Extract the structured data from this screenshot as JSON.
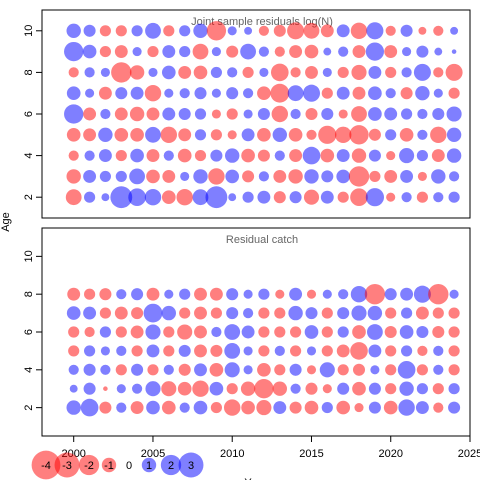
{
  "chart_data": [
    {
      "type": "scatter",
      "title": "Joint sample residuals log(N)",
      "ylabel": "Age",
      "xlim": [
        1998,
        2025
      ],
      "ylim": [
        1,
        11
      ],
      "yticks": [
        "2",
        "4",
        "6",
        "8",
        "10"
      ],
      "grid": false,
      "encoding": "bubble area ~ |residual|; red = negative, blue = positive",
      "x": [
        2000,
        2001,
        2002,
        2003,
        2004,
        2005,
        2006,
        2007,
        2008,
        2009,
        2010,
        2011,
        2012,
        2013,
        2014,
        2015,
        2016,
        2017,
        2018,
        2019,
        2020,
        2021,
        2022,
        2023,
        2024
      ],
      "ages": [
        2,
        3,
        4,
        5,
        6,
        7,
        8,
        9,
        10
      ],
      "residuals": {
        "2": [
          -1.2,
          0.6,
          0.3,
          2.3,
          1.5,
          1.3,
          -0.9,
          -1.3,
          1.2,
          2.3,
          0.3,
          0.6,
          0.8,
          -0.7,
          0.7,
          -1.1,
          0.8,
          -0.6,
          -1.5,
          1.6,
          -0.4,
          0.5,
          -0.6,
          0.5,
          0.6
        ],
        "3": [
          -1.0,
          0.8,
          0.6,
          0.6,
          1.2,
          -0.9,
          -0.8,
          0.4,
          1.0,
          -1.3,
          0.9,
          -0.7,
          0.5,
          -0.8,
          -1.0,
          1.0,
          0.7,
          0.9,
          -2.0,
          -0.6,
          -0.8,
          0.8,
          -0.4,
          1.0,
          0.5
        ],
        "4": [
          -0.5,
          0.5,
          0.8,
          -0.6,
          0.9,
          -0.8,
          0.5,
          -0.9,
          -0.6,
          0.7,
          1.0,
          -0.9,
          -0.7,
          0.5,
          -0.8,
          1.5,
          -0.9,
          0.8,
          -1.0,
          0.7,
          -0.4,
          1.1,
          0.6,
          -0.8,
          1.0
        ],
        "5": [
          -0.9,
          -0.8,
          1.0,
          -0.9,
          -0.9,
          1.2,
          -1.3,
          -0.8,
          0.6,
          -0.6,
          -0.4,
          0.8,
          -0.9,
          1.0,
          -0.9,
          -0.5,
          -1.6,
          -1.3,
          -1.8,
          -0.7,
          0.6,
          -0.9,
          0.5,
          -1.3,
          1.0
        ],
        "6": [
          1.8,
          -0.8,
          0.5,
          -0.8,
          -1.0,
          -0.8,
          0.8,
          0.7,
          0.6,
          -0.4,
          -0.6,
          0.4,
          0.7,
          -1.3,
          0.5,
          -0.7,
          0.7,
          -0.4,
          -1.2,
          0.9,
          0.8,
          0.6,
          0.5,
          0.7,
          1.1
        ],
        "7": [
          0.9,
          0.4,
          -0.8,
          0.7,
          0.8,
          -1.3,
          0.4,
          0.5,
          0.7,
          0.4,
          0.7,
          0.5,
          -0.9,
          -1.7,
          1.2,
          1.4,
          -0.6,
          0.8,
          -0.8,
          0.9,
          0.5,
          -0.7,
          1.0,
          0.4,
          -0.6
        ],
        "8": [
          -0.5,
          0.5,
          0.4,
          -2.0,
          -1.0,
          0.4,
          0.9,
          -0.8,
          -0.9,
          0.6,
          0.5,
          -0.6,
          0.4,
          -1.5,
          -0.5,
          -0.8,
          0.4,
          -0.6,
          -1.1,
          0.8,
          -0.6,
          0.5,
          1.4,
          -0.5,
          -1.4
        ],
        "9": [
          1.8,
          0.9,
          -0.6,
          -0.8,
          0.4,
          -0.6,
          0.8,
          0.6,
          -1.2,
          0.4,
          -0.7,
          1.2,
          0.5,
          -0.5,
          -0.8,
          -0.9,
          0.3,
          0.5,
          -0.8,
          1.6,
          -0.8,
          0.4,
          0.7,
          0.3,
          0.1
        ],
        "10": [
          1.0,
          0.7,
          -0.6,
          -0.6,
          0.6,
          1.2,
          -0.6,
          0.6,
          1.0,
          -1.8,
          0.4,
          0.3,
          -0.5,
          -0.7,
          -1.4,
          -1.2,
          -0.8,
          0.8,
          -1.3,
          1.4,
          -0.5,
          0.7,
          -0.3,
          -0.5,
          0.3
        ]
      }
    },
    {
      "type": "scatter",
      "title": "Residual catch",
      "xlabel": "Y",
      "ylabel": "Age",
      "xlim": [
        1998,
        2025
      ],
      "ylim": [
        0.5,
        11.5
      ],
      "xticks": [
        "2000",
        "2005",
        "2010",
        "2015",
        "2020",
        "2025"
      ],
      "yticks": [
        "2",
        "4",
        "6",
        "8",
        "10"
      ],
      "grid": false,
      "encoding": "bubble area ~ |residual|; red = negative, blue = positive",
      "x": [
        2000,
        2001,
        2002,
        2003,
        2004,
        2005,
        2006,
        2007,
        2008,
        2009,
        2010,
        2011,
        2012,
        2013,
        2014,
        2015,
        2016,
        2017,
        2018,
        2019,
        2020,
        2021,
        2022,
        2023,
        2024
      ],
      "ages": [
        2,
        3,
        4,
        5,
        6,
        7,
        8
      ],
      "residuals": {
        "2": [
          1.0,
          1.5,
          -0.7,
          0.5,
          -0.8,
          0.9,
          -0.9,
          0.5,
          0.9,
          -0.6,
          -1.3,
          -0.9,
          -1.1,
          0.8,
          -0.7,
          -0.9,
          0.6,
          -0.9,
          -0.4,
          0.7,
          -0.9,
          1.3,
          0.8,
          -0.5,
          0.7
        ],
        "3": [
          0.3,
          0.7,
          -0.1,
          0.4,
          0.5,
          1.1,
          -1.1,
          -0.9,
          -1.3,
          0.9,
          -0.6,
          -1.0,
          -1.8,
          -1.0,
          0.5,
          -0.7,
          -0.4,
          0.7,
          -0.9,
          0.7,
          -0.6,
          1.0,
          0.6,
          -0.6,
          0.6
        ],
        "4": [
          0.5,
          0.7,
          0.5,
          -0.6,
          0.7,
          -0.6,
          0.5,
          -0.7,
          0.8,
          -0.9,
          1.1,
          0.4,
          -0.9,
          -0.6,
          0.7,
          -0.4,
          1.1,
          -0.6,
          -0.7,
          0.4,
          -0.6,
          1.5,
          -0.6,
          0.5,
          -0.6
        ],
        "5": [
          -0.6,
          0.6,
          0.4,
          0.5,
          -0.6,
          0.8,
          -0.6,
          0.7,
          -0.8,
          -0.7,
          1.2,
          0.4,
          -0.6,
          0.5,
          -0.6,
          0.4,
          -0.6,
          -0.8,
          -1.5,
          0.8,
          -0.6,
          0.6,
          -0.5,
          0.5,
          -0.6
        ],
        "6": [
          -0.6,
          -0.5,
          0.6,
          -0.6,
          -0.8,
          1.1,
          -0.6,
          -1.1,
          -0.8,
          0.5,
          1.2,
          0.8,
          -0.6,
          -0.6,
          -0.6,
          0.9,
          -0.6,
          0.6,
          -0.9,
          1.2,
          -0.7,
          0.9,
          0.7,
          -0.7,
          -0.6
        ],
        "7": [
          0.9,
          0.8,
          -0.6,
          -0.8,
          -0.7,
          1.7,
          1.0,
          -0.6,
          -0.8,
          -0.6,
          0.7,
          0.5,
          -0.6,
          -0.6,
          1.0,
          0.7,
          -0.6,
          0.7,
          1.1,
          1.0,
          -0.6,
          0.6,
          -0.8,
          -0.6,
          -0.6
        ],
        "8": [
          -0.8,
          -0.6,
          -0.7,
          0.5,
          0.7,
          -0.8,
          0.4,
          0.6,
          -0.8,
          -0.8,
          0.7,
          0.4,
          0.6,
          -0.4,
          0.8,
          -0.4,
          0.4,
          0.5,
          1.3,
          -2.0,
          0.7,
          0.8,
          1.4,
          -2.0,
          0.4
        ]
      }
    }
  ],
  "legend": {
    "values": [
      -4,
      -3,
      -2,
      -1,
      0,
      1,
      2,
      3
    ],
    "labels": [
      "-4",
      "-3",
      "-2",
      "-1",
      "0",
      "1",
      "2",
      "3"
    ]
  },
  "colors": {
    "negative": "#ff0000",
    "positive": "#0000ff",
    "frame": "#000000",
    "title_text": "#666666"
  }
}
